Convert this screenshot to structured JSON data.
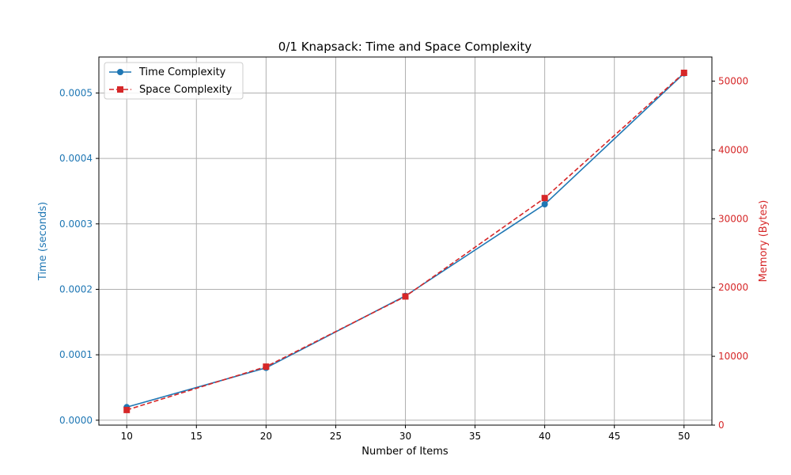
{
  "chart_data": {
    "type": "line",
    "title": "0/1 Knapsack: Time and Space Complexity",
    "xlabel": "Number of Items",
    "ylabel_left": "Time (seconds)",
    "ylabel_right": "Memory (Bytes)",
    "xlim": [
      8,
      52
    ],
    "ylim_left": [
      -7.5e-06,
      0.000555
    ],
    "ylim_right": [
      0,
      53500
    ],
    "x_ticks": [
      10,
      15,
      20,
      25,
      30,
      35,
      40,
      45,
      50
    ],
    "y_ticks_left": [
      "0.0000",
      "0.0001",
      "0.0002",
      "0.0003",
      "0.0004",
      "0.0005"
    ],
    "y_ticks_left_values": [
      0,
      0.0001,
      0.0002,
      0.0003,
      0.0004,
      0.0005
    ],
    "y_ticks_right": [
      "0",
      "10000",
      "20000",
      "30000",
      "40000",
      "50000"
    ],
    "y_ticks_right_values": [
      0,
      10000,
      20000,
      30000,
      40000,
      50000
    ],
    "grid": true,
    "legend_position": "top-left",
    "x": [
      10,
      20,
      30,
      40,
      50
    ],
    "series": [
      {
        "name": "Time Complexity",
        "axis": "left",
        "color": "#1f77b4",
        "marker": "circle",
        "linestyle": "solid",
        "values": [
          2e-05,
          8e-05,
          0.00019,
          0.00033,
          0.00053
        ]
      },
      {
        "name": "Space Complexity",
        "axis": "right",
        "color": "#d62728",
        "marker": "square",
        "linestyle": "dashed",
        "values": [
          2200,
          8500,
          18700,
          33000,
          51200
        ]
      }
    ],
    "left_axis_color": "#1f77b4",
    "right_axis_color": "#d62728"
  }
}
